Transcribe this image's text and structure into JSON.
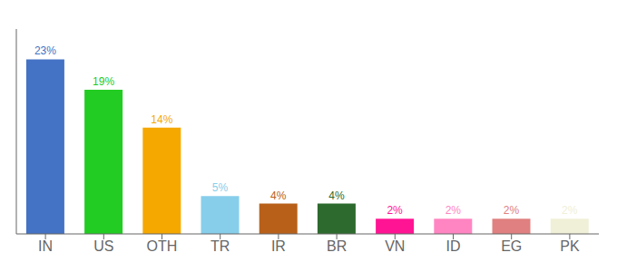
{
  "chart_data": {
    "type": "bar",
    "categories": [
      "IN",
      "US",
      "OTH",
      "TR",
      "IR",
      "BR",
      "VN",
      "ID",
      "EG",
      "PK"
    ],
    "values": [
      23,
      19,
      14,
      5,
      4,
      4,
      2,
      2,
      2,
      2
    ],
    "value_labels": [
      "23%",
      "19%",
      "14%",
      "5%",
      "4%",
      "4%",
      "2%",
      "2%",
      "2%",
      "2%"
    ],
    "colors": [
      "#4472c4",
      "#22cc22",
      "#f5a800",
      "#87ceeb",
      "#b8601a",
      "#2d6a2d",
      "#ff1493",
      "#ff85c2",
      "#e08080",
      "#f0f0d8"
    ],
    "ylim": [
      0,
      27
    ],
    "data_labels": true,
    "tick_labels": "x",
    "grid": false
  }
}
